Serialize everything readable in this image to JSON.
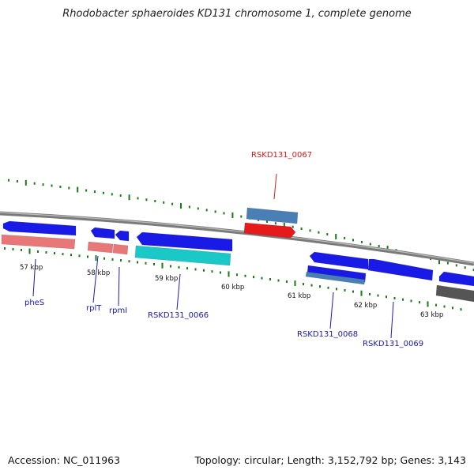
{
  "title": "Rhodobacter sphaeroides KD131 chromosome 1, complete genome",
  "footer": {
    "accession": "Accession: NC_011963",
    "summary": "Topology: circular; Length: 3,152,792 bp; Genes: 3,143"
  },
  "colors": {
    "backbone": "#7a7a7a",
    "tick": "#1a7a1a",
    "forward_cds": "#1a1ae6",
    "reverse_cds": "#e87878",
    "rna": "#1ac8c8",
    "highlight_red": "#e61a1a",
    "steel": "#4a7fb5",
    "gray": "#555555",
    "label_blue": "#1a1ab4",
    "label_red": "#d01a1a"
  },
  "ticks": {
    "labels": [
      "57 kbp",
      "58 kbp",
      "59 kbp",
      "60 kbp",
      "61 kbp",
      "62 kbp",
      "63 kbp"
    ]
  },
  "genes": {
    "labels": [
      "pheS",
      "rplT",
      "rpmI",
      "RSKD131_0066",
      "RSKD131_0067",
      "RSKD131_0068",
      "RSKD131_0069"
    ]
  }
}
